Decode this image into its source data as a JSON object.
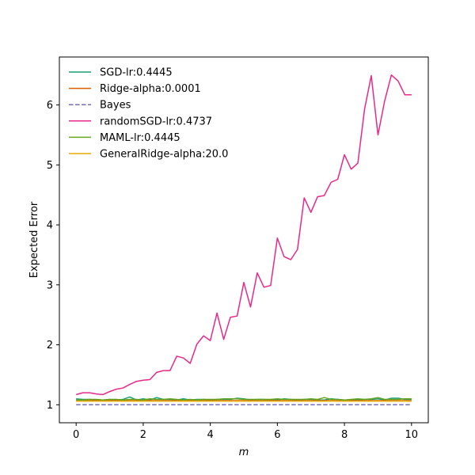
{
  "chart_data": {
    "type": "line",
    "title": "",
    "xlabel": "m",
    "ylabel": "Expected Error",
    "xlim": [
      -0.5,
      10.5
    ],
    "ylim": [
      0.7,
      6.8
    ],
    "xticks": [
      0,
      2,
      4,
      6,
      8,
      10
    ],
    "yticks": [
      1,
      2,
      3,
      4,
      5,
      6
    ],
    "grid": false,
    "legend_position": "upper-left",
    "x": [
      0,
      0.2,
      0.4,
      0.6,
      0.8,
      1.0,
      1.2,
      1.4,
      1.6,
      1.8,
      2.0,
      2.2,
      2.4,
      2.6,
      2.8,
      3.0,
      3.2,
      3.4,
      3.6,
      3.8,
      4.0,
      4.2,
      4.4,
      4.6,
      4.8,
      5.0,
      5.2,
      5.4,
      5.6,
      5.8,
      6.0,
      6.2,
      6.4,
      6.6,
      6.8,
      7.0,
      7.2,
      7.4,
      7.6,
      7.8,
      8.0,
      8.2,
      8.4,
      8.6,
      8.8,
      9.0,
      9.2,
      9.4,
      9.6,
      9.8,
      10.0
    ],
    "series": [
      {
        "name": "SGD-lr:0.4445",
        "color": "#1b9e77",
        "dash": "solid",
        "values": [
          1.1,
          1.09,
          1.09,
          1.08,
          1.08,
          1.09,
          1.08,
          1.09,
          1.13,
          1.08,
          1.1,
          1.08,
          1.12,
          1.09,
          1.09,
          1.08,
          1.1,
          1.08,
          1.09,
          1.09,
          1.08,
          1.09,
          1.09,
          1.09,
          1.11,
          1.1,
          1.08,
          1.09,
          1.09,
          1.08,
          1.08,
          1.1,
          1.09,
          1.08,
          1.09,
          1.09,
          1.08,
          1.08,
          1.1,
          1.09,
          1.08,
          1.08,
          1.08,
          1.09,
          1.09,
          1.1,
          1.08,
          1.11,
          1.11,
          1.09,
          1.09
        ]
      },
      {
        "name": "Ridge-alpha:0.0001",
        "color": "#d95f02",
        "dash": "solid",
        "values": [
          1.07,
          1.07,
          1.07,
          1.07,
          1.07,
          1.07,
          1.07,
          1.07,
          1.07,
          1.07,
          1.07,
          1.07,
          1.07,
          1.07,
          1.07,
          1.07,
          1.07,
          1.07,
          1.07,
          1.07,
          1.07,
          1.07,
          1.07,
          1.07,
          1.07,
          1.07,
          1.07,
          1.07,
          1.07,
          1.07,
          1.07,
          1.07,
          1.07,
          1.07,
          1.07,
          1.07,
          1.07,
          1.07,
          1.07,
          1.07,
          1.07,
          1.07,
          1.07,
          1.07,
          1.07,
          1.07,
          1.07,
          1.07,
          1.07,
          1.07,
          1.07
        ]
      },
      {
        "name": "Bayes",
        "color": "#7570b3",
        "dash": "dashed",
        "values": [
          1.0,
          1.0,
          1.0,
          1.0,
          1.0,
          1.0,
          1.0,
          1.0,
          1.0,
          1.0,
          1.0,
          1.0,
          1.0,
          1.0,
          1.0,
          1.0,
          1.0,
          1.0,
          1.0,
          1.0,
          1.0,
          1.0,
          1.0,
          1.0,
          1.0,
          1.0,
          1.0,
          1.0,
          1.0,
          1.0,
          1.0,
          1.0,
          1.0,
          1.0,
          1.0,
          1.0,
          1.0,
          1.0,
          1.0,
          1.0,
          1.0,
          1.0,
          1.0,
          1.0,
          1.0,
          1.0,
          1.0,
          1.0,
          1.0,
          1.0,
          1.0
        ]
      },
      {
        "name": "randomSGD-lr:0.4737",
        "color": "#e7298a",
        "dash": "solid",
        "values": [
          1.17,
          1.2,
          1.2,
          1.18,
          1.17,
          1.22,
          1.26,
          1.28,
          1.34,
          1.39,
          1.41,
          1.42,
          1.54,
          1.57,
          1.57,
          1.81,
          1.78,
          1.69,
          2.01,
          2.15,
          2.07,
          2.53,
          2.09,
          2.46,
          2.48,
          3.04,
          2.63,
          3.2,
          2.96,
          2.99,
          3.78,
          3.47,
          3.42,
          3.59,
          4.45,
          4.21,
          4.47,
          4.49,
          4.71,
          4.76,
          5.17,
          4.93,
          5.03,
          5.93,
          6.49,
          5.5,
          6.07,
          6.5,
          6.4,
          6.17,
          6.17
        ]
      },
      {
        "name": "MAML-lr:0.4445",
        "color": "#66a61e",
        "dash": "solid",
        "values": [
          1.08,
          1.08,
          1.09,
          1.09,
          1.08,
          1.09,
          1.09,
          1.08,
          1.09,
          1.09,
          1.08,
          1.1,
          1.09,
          1.09,
          1.1,
          1.09,
          1.08,
          1.09,
          1.08,
          1.09,
          1.09,
          1.09,
          1.1,
          1.1,
          1.1,
          1.09,
          1.09,
          1.09,
          1.09,
          1.09,
          1.1,
          1.09,
          1.09,
          1.09,
          1.09,
          1.1,
          1.09,
          1.12,
          1.09,
          1.09,
          1.08,
          1.09,
          1.1,
          1.09,
          1.1,
          1.12,
          1.09,
          1.09,
          1.09,
          1.1,
          1.1
        ]
      },
      {
        "name": "GeneralRidge-alpha:20.0",
        "color": "#e6ab02",
        "dash": "solid",
        "values": [
          1.06,
          1.06,
          1.06,
          1.06,
          1.06,
          1.06,
          1.06,
          1.06,
          1.06,
          1.06,
          1.06,
          1.06,
          1.06,
          1.06,
          1.06,
          1.06,
          1.06,
          1.06,
          1.06,
          1.06,
          1.06,
          1.06,
          1.06,
          1.06,
          1.06,
          1.06,
          1.06,
          1.06,
          1.06,
          1.06,
          1.06,
          1.06,
          1.06,
          1.06,
          1.06,
          1.06,
          1.06,
          1.06,
          1.06,
          1.06,
          1.06,
          1.06,
          1.06,
          1.06,
          1.06,
          1.06,
          1.06,
          1.06,
          1.06,
          1.06,
          1.06
        ]
      }
    ]
  }
}
